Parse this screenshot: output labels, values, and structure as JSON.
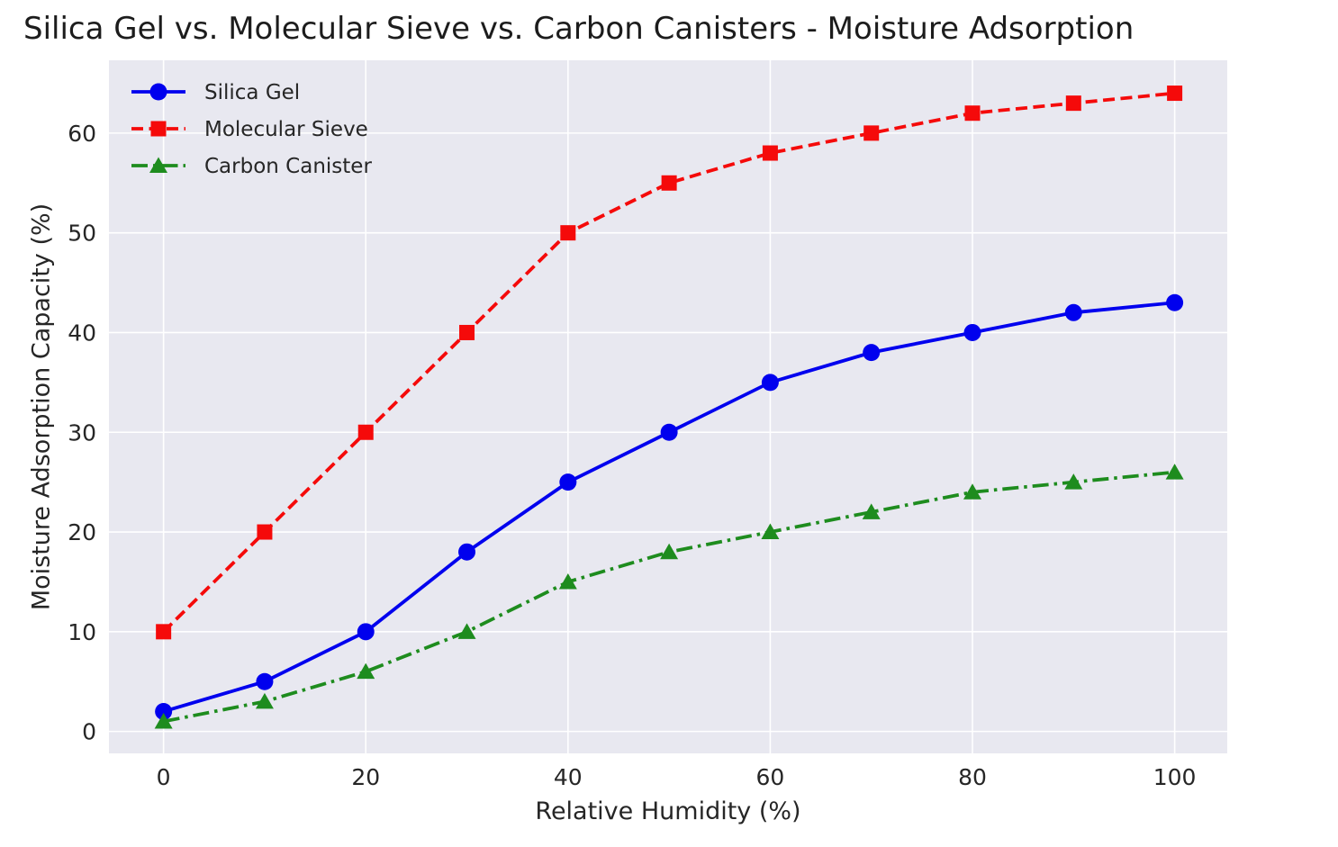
{
  "chart_data": {
    "type": "line",
    "title": "Silica Gel vs. Molecular Sieve vs. Carbon Canisters - Moisture Adsorption",
    "xlabel": "Relative Humidity (%)",
    "ylabel": "Moisture Adsorption Capacity (%)",
    "x": [
      0,
      10,
      20,
      30,
      40,
      50,
      60,
      70,
      80,
      90,
      100
    ],
    "series": [
      {
        "name": "Silica Gel",
        "color": "#0000EE",
        "dash": "solid",
        "marker": "circle",
        "values": [
          2,
          5,
          10,
          18,
          25,
          30,
          35,
          38,
          40,
          42,
          43
        ]
      },
      {
        "name": "Molecular Sieve",
        "color": "#F50A0A",
        "dash": "dashed",
        "marker": "square",
        "values": [
          10,
          20,
          30,
          40,
          50,
          55,
          58,
          60,
          62,
          63,
          64
        ]
      },
      {
        "name": "Carbon Canister",
        "color": "#1E8C1E",
        "dash": "dashdot",
        "marker": "triangle",
        "values": [
          1,
          3,
          6,
          10,
          15,
          18,
          20,
          22,
          24,
          25,
          26
        ]
      }
    ],
    "xticks": [
      0,
      20,
      40,
      60,
      80,
      100
    ],
    "yticks": [
      0,
      10,
      20,
      30,
      40,
      50,
      60
    ],
    "xlim": [
      -5.4,
      105.2
    ],
    "ylim": [
      -2.2,
      67.3
    ],
    "grid": true,
    "legend_position": "upper-left",
    "plot_bg": "#E8E8F0",
    "grid_color": "#FFFFFF",
    "text_color": "#262626"
  }
}
